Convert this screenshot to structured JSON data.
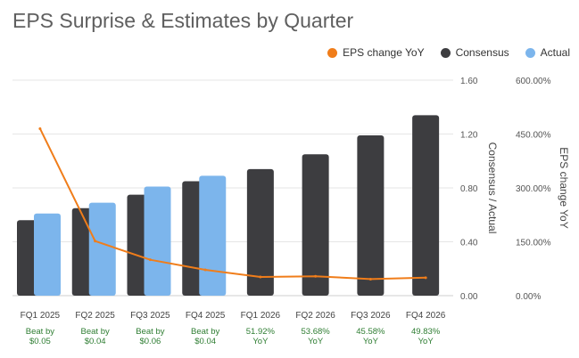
{
  "title": "EPS Surprise & Estimates by Quarter",
  "colors": {
    "eps_change": "#f07d1a",
    "consensus": "#3d3d40",
    "actual": "#7cb5ec",
    "note": "#2e7d32",
    "grid": "#e6e6e6",
    "axis_text": "#555555"
  },
  "legend": [
    {
      "label": "EPS change YoY",
      "color": "#f07d1a"
    },
    {
      "label": "Consensus",
      "color": "#3d3d40"
    },
    {
      "label": "Actual",
      "color": "#7cb5ec"
    }
  ],
  "chart_data": {
    "type": "bar",
    "title": "EPS Surprise & Estimates by Quarter",
    "categories": [
      "FQ1 2025",
      "FQ2 2025",
      "FQ3 2025",
      "FQ4 2025",
      "FQ1 2026",
      "FQ2 2026",
      "FQ3 2026",
      "FQ4 2026"
    ],
    "notes": [
      [
        "Beat by",
        "$0.05"
      ],
      [
        "Beat by",
        "$0.04"
      ],
      [
        "Beat by",
        "$0.06"
      ],
      [
        "Beat by",
        "$0.04"
      ],
      [
        "51.92%",
        "YoY"
      ],
      [
        "53.68%",
        "YoY"
      ],
      [
        "45.58%",
        "YoY"
      ],
      [
        "49.83%",
        "YoY"
      ]
    ],
    "series": [
      {
        "name": "Consensus",
        "type": "bar",
        "axis": "left",
        "values": [
          0.56,
          0.65,
          0.75,
          0.85,
          0.94,
          1.05,
          1.19,
          1.34
        ]
      },
      {
        "name": "Actual",
        "type": "bar",
        "axis": "left",
        "values": [
          0.61,
          0.69,
          0.81,
          0.89,
          null,
          null,
          null,
          null
        ]
      },
      {
        "name": "EPS change YoY",
        "type": "line",
        "axis": "right",
        "values": [
          465,
          152,
          100,
          72,
          52,
          54,
          46,
          50
        ]
      }
    ],
    "ylabel_left": "Consensus / Actual",
    "ylabel_right": "EPS change YoY",
    "ylim_left": [
      0,
      1.6
    ],
    "ylim_right": [
      0,
      600
    ],
    "yticks_left": [
      "0.00",
      "0.40",
      "0.80",
      "1.20",
      "1.60"
    ],
    "yticks_right": [
      "0.00%",
      "150.00%",
      "300.00%",
      "450.00%",
      "600.00%"
    ],
    "grid": true,
    "legend_position": "top-right"
  }
}
